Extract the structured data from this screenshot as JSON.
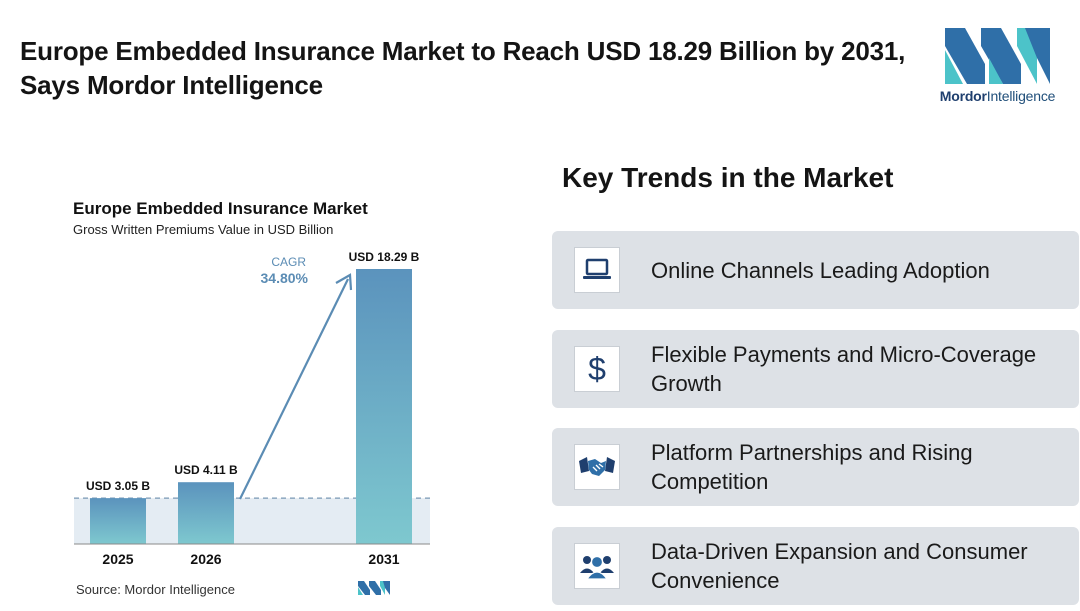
{
  "headline": "Europe Embedded Insurance Market to Reach USD 18.29 Billion by 2031, Says Mordor Intelligence",
  "logo": {
    "brand": "Mordor",
    "brand_suffix": "Intelligence"
  },
  "chart_data": {
    "type": "bar",
    "title": "Europe Embedded Insurance Market",
    "subtitle": "Gross Written Premiums Value in USD Billion",
    "categories": [
      "2025",
      "2026",
      "2031"
    ],
    "values": [
      3.05,
      4.11,
      18.29
    ],
    "value_labels": [
      "USD 3.05 B",
      "USD 4.11 B",
      "USD 18.29 B"
    ],
    "cagr_label": "CAGR",
    "cagr_value": "34.80%",
    "ylim": [
      0,
      18.29
    ],
    "grid": false,
    "baseline_reference": 3.05
  },
  "source": "Source: Mordor Intelligence",
  "trends": {
    "heading": "Key Trends in the Market",
    "items": [
      {
        "label": "Online Channels Leading Adoption",
        "icon": "laptop-icon"
      },
      {
        "label": "Flexible Payments and Micro-Coverage Growth",
        "icon": "dollar-icon"
      },
      {
        "label": "Platform Partnerships and Rising Competition",
        "icon": "handshake-icon"
      },
      {
        "label": "Data-Driven Expansion and Consumer Convenience",
        "icon": "people-icon"
      }
    ]
  },
  "colors": {
    "accent": "#4a90c2",
    "bar_top": "#5b93bd",
    "bar_bottom": "#7ec8cf",
    "card_bg": "#dde1e6",
    "logo_teal": "#4cc3c9",
    "logo_blue": "#2f6fa8"
  }
}
